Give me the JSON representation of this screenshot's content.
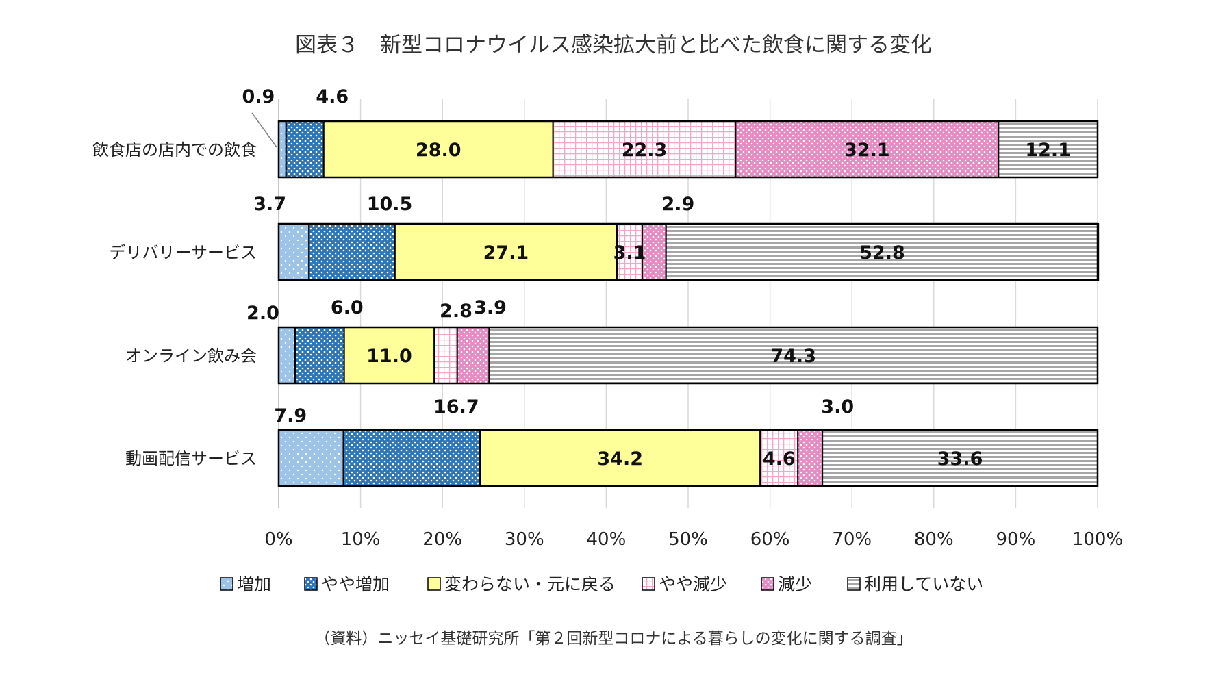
{
  "chart_data": {
    "type": "bar",
    "orientation": "horizontal",
    "stacked": "100%",
    "title": "図表３　新型コロナウイルス感染拡大前と比べた飲食に関する変化",
    "categories": [
      "飲食店の店内での飲食",
      "デリバリーサービス",
      "オンライン飲み会",
      "動画配信サービス"
    ],
    "series": [
      {
        "name": "増加",
        "values": [
          0.9,
          3.7,
          2.0,
          7.9
        ],
        "color": "#9DC3E6",
        "pattern": "dots-white"
      },
      {
        "name": "やや増加",
        "values": [
          4.6,
          10.5,
          6.0,
          16.7
        ],
        "color": "#2E75B6",
        "pattern": "dots-white-dense"
      },
      {
        "name": "変わらない・元に戻る",
        "values": [
          28.0,
          27.1,
          11.0,
          34.2
        ],
        "color": "#FFFF99",
        "pattern": "solid"
      },
      {
        "name": "やや減少",
        "values": [
          22.3,
          3.1,
          2.8,
          4.6
        ],
        "color": "#F4A6C6",
        "pattern": "grid-light"
      },
      {
        "name": "減少",
        "values": [
          32.1,
          2.9,
          3.9,
          3.0
        ],
        "color": "#E58BC4",
        "pattern": "dots-white"
      },
      {
        "name": "利用していない",
        "values": [
          12.1,
          52.8,
          74.3,
          33.6
        ],
        "color": "#A6A6A6",
        "pattern": "h-stripes"
      }
    ],
    "value_labels": [
      [
        "0.9",
        "4.6",
        "28.0",
        "22.3",
        "32.1",
        "12.1"
      ],
      [
        "3.7",
        "10.5",
        "27.1",
        "3.1",
        "2.9",
        "52.8"
      ],
      [
        "2.0",
        "6.0",
        "11.0",
        "2.8",
        "3.9",
        "74.3"
      ],
      [
        "7.9",
        "16.7",
        "34.2",
        "4.6",
        "3.0",
        "33.6"
      ]
    ],
    "x_ticks": [
      "0%",
      "10%",
      "20%",
      "30%",
      "40%",
      "50%",
      "60%",
      "70%",
      "80%",
      "90%",
      "100%"
    ],
    "xlim": [
      0,
      100
    ],
    "grid": true,
    "legend_position": "bottom",
    "source": "（資料）ニッセイ基礎研究所「第２回新型コロナによる暮らしの変化に関する調査」"
  }
}
